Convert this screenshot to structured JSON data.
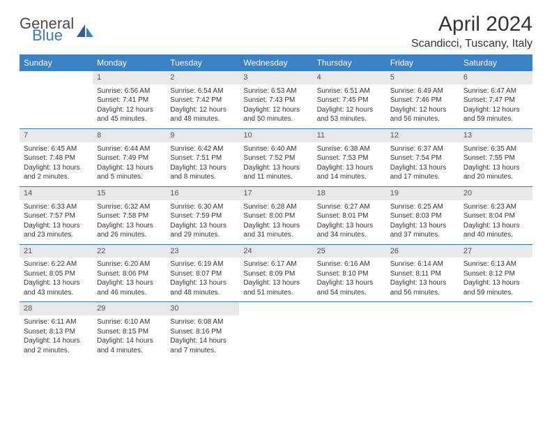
{
  "brand": {
    "word1": "General",
    "word2": "Blue"
  },
  "title": "April 2024",
  "location": "Scandicci, Tuscany, Italy",
  "weekdays": [
    "Sunday",
    "Monday",
    "Tuesday",
    "Wednesday",
    "Thursday",
    "Friday",
    "Saturday"
  ],
  "colors": {
    "header_bar": "#3a82c4",
    "daynum_bg": "#e8e8e8",
    "rule": "#3a7ab8",
    "logo_blue": "#3a7ab8",
    "logo_gray": "#4a4a4a"
  },
  "weeks": [
    [
      {
        "n": "",
        "sunrise": "",
        "sunset": "",
        "daylight": ""
      },
      {
        "n": "1",
        "sunrise": "Sunrise: 6:56 AM",
        "sunset": "Sunset: 7:41 PM",
        "daylight": "Daylight: 12 hours and 45 minutes."
      },
      {
        "n": "2",
        "sunrise": "Sunrise: 6:54 AM",
        "sunset": "Sunset: 7:42 PM",
        "daylight": "Daylight: 12 hours and 48 minutes."
      },
      {
        "n": "3",
        "sunrise": "Sunrise: 6:53 AM",
        "sunset": "Sunset: 7:43 PM",
        "daylight": "Daylight: 12 hours and 50 minutes."
      },
      {
        "n": "4",
        "sunrise": "Sunrise: 6:51 AM",
        "sunset": "Sunset: 7:45 PM",
        "daylight": "Daylight: 12 hours and 53 minutes."
      },
      {
        "n": "5",
        "sunrise": "Sunrise: 6:49 AM",
        "sunset": "Sunset: 7:46 PM",
        "daylight": "Daylight: 12 hours and 56 minutes."
      },
      {
        "n": "6",
        "sunrise": "Sunrise: 6:47 AM",
        "sunset": "Sunset: 7:47 PM",
        "daylight": "Daylight: 12 hours and 59 minutes."
      }
    ],
    [
      {
        "n": "7",
        "sunrise": "Sunrise: 6:45 AM",
        "sunset": "Sunset: 7:48 PM",
        "daylight": "Daylight: 13 hours and 2 minutes."
      },
      {
        "n": "8",
        "sunrise": "Sunrise: 6:44 AM",
        "sunset": "Sunset: 7:49 PM",
        "daylight": "Daylight: 13 hours and 5 minutes."
      },
      {
        "n": "9",
        "sunrise": "Sunrise: 6:42 AM",
        "sunset": "Sunset: 7:51 PM",
        "daylight": "Daylight: 13 hours and 8 minutes."
      },
      {
        "n": "10",
        "sunrise": "Sunrise: 6:40 AM",
        "sunset": "Sunset: 7:52 PM",
        "daylight": "Daylight: 13 hours and 11 minutes."
      },
      {
        "n": "11",
        "sunrise": "Sunrise: 6:38 AM",
        "sunset": "Sunset: 7:53 PM",
        "daylight": "Daylight: 13 hours and 14 minutes."
      },
      {
        "n": "12",
        "sunrise": "Sunrise: 6:37 AM",
        "sunset": "Sunset: 7:54 PM",
        "daylight": "Daylight: 13 hours and 17 minutes."
      },
      {
        "n": "13",
        "sunrise": "Sunrise: 6:35 AM",
        "sunset": "Sunset: 7:55 PM",
        "daylight": "Daylight: 13 hours and 20 minutes."
      }
    ],
    [
      {
        "n": "14",
        "sunrise": "Sunrise: 6:33 AM",
        "sunset": "Sunset: 7:57 PM",
        "daylight": "Daylight: 13 hours and 23 minutes."
      },
      {
        "n": "15",
        "sunrise": "Sunrise: 6:32 AM",
        "sunset": "Sunset: 7:58 PM",
        "daylight": "Daylight: 13 hours and 26 minutes."
      },
      {
        "n": "16",
        "sunrise": "Sunrise: 6:30 AM",
        "sunset": "Sunset: 7:59 PM",
        "daylight": "Daylight: 13 hours and 29 minutes."
      },
      {
        "n": "17",
        "sunrise": "Sunrise: 6:28 AM",
        "sunset": "Sunset: 8:00 PM",
        "daylight": "Daylight: 13 hours and 31 minutes."
      },
      {
        "n": "18",
        "sunrise": "Sunrise: 6:27 AM",
        "sunset": "Sunset: 8:01 PM",
        "daylight": "Daylight: 13 hours and 34 minutes."
      },
      {
        "n": "19",
        "sunrise": "Sunrise: 6:25 AM",
        "sunset": "Sunset: 8:03 PM",
        "daylight": "Daylight: 13 hours and 37 minutes."
      },
      {
        "n": "20",
        "sunrise": "Sunrise: 6:23 AM",
        "sunset": "Sunset: 8:04 PM",
        "daylight": "Daylight: 13 hours and 40 minutes."
      }
    ],
    [
      {
        "n": "21",
        "sunrise": "Sunrise: 6:22 AM",
        "sunset": "Sunset: 8:05 PM",
        "daylight": "Daylight: 13 hours and 43 minutes."
      },
      {
        "n": "22",
        "sunrise": "Sunrise: 6:20 AM",
        "sunset": "Sunset: 8:06 PM",
        "daylight": "Daylight: 13 hours and 46 minutes."
      },
      {
        "n": "23",
        "sunrise": "Sunrise: 6:19 AM",
        "sunset": "Sunset: 8:07 PM",
        "daylight": "Daylight: 13 hours and 48 minutes."
      },
      {
        "n": "24",
        "sunrise": "Sunrise: 6:17 AM",
        "sunset": "Sunset: 8:09 PM",
        "daylight": "Daylight: 13 hours and 51 minutes."
      },
      {
        "n": "25",
        "sunrise": "Sunrise: 6:16 AM",
        "sunset": "Sunset: 8:10 PM",
        "daylight": "Daylight: 13 hours and 54 minutes."
      },
      {
        "n": "26",
        "sunrise": "Sunrise: 6:14 AM",
        "sunset": "Sunset: 8:11 PM",
        "daylight": "Daylight: 13 hours and 56 minutes."
      },
      {
        "n": "27",
        "sunrise": "Sunrise: 6:13 AM",
        "sunset": "Sunset: 8:12 PM",
        "daylight": "Daylight: 13 hours and 59 minutes."
      }
    ],
    [
      {
        "n": "28",
        "sunrise": "Sunrise: 6:11 AM",
        "sunset": "Sunset: 8:13 PM",
        "daylight": "Daylight: 14 hours and 2 minutes."
      },
      {
        "n": "29",
        "sunrise": "Sunrise: 6:10 AM",
        "sunset": "Sunset: 8:15 PM",
        "daylight": "Daylight: 14 hours and 4 minutes."
      },
      {
        "n": "30",
        "sunrise": "Sunrise: 6:08 AM",
        "sunset": "Sunset: 8:16 PM",
        "daylight": "Daylight: 14 hours and 7 minutes."
      },
      {
        "n": "",
        "sunrise": "",
        "sunset": "",
        "daylight": ""
      },
      {
        "n": "",
        "sunrise": "",
        "sunset": "",
        "daylight": ""
      },
      {
        "n": "",
        "sunrise": "",
        "sunset": "",
        "daylight": ""
      },
      {
        "n": "",
        "sunrise": "",
        "sunset": "",
        "daylight": ""
      }
    ]
  ]
}
